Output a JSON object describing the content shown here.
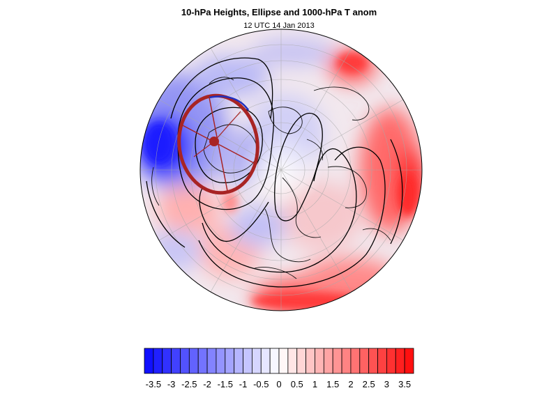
{
  "header": {
    "title": "10-hPa Heights, Ellipse and 1000-hPa T anom",
    "subtitle": "12 UTC 14 Jan 2013"
  },
  "colors": {
    "cold_max": "#1010ff",
    "warm_max": "#ff1010",
    "ellipse": "#a82424",
    "ellipse_edge": "#2030c0",
    "contour": "#000000"
  },
  "colorbar": {
    "min": -3.75,
    "max": 3.75,
    "step": 0.25,
    "tick_labels": [
      "-3.5",
      "-3",
      "-2.5",
      "-2",
      "-1.5",
      "-1",
      "-0.5",
      "0",
      "0.5",
      "1",
      "1.5",
      "2",
      "2.5",
      "3",
      "3.5"
    ]
  },
  "map": {
    "projection": "orthographic-north-polar"
  }
}
